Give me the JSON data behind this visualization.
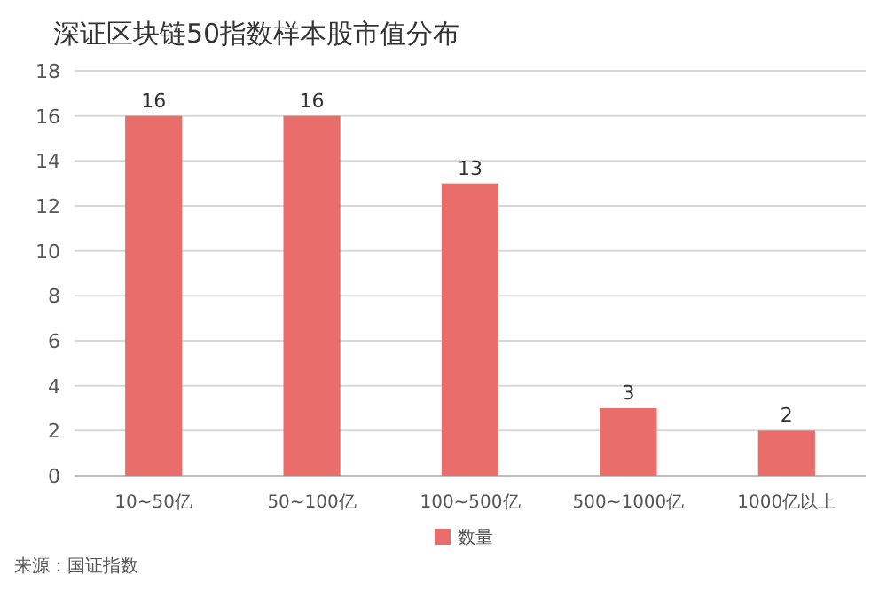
{
  "chart_data": {
    "type": "bar",
    "title": "深证区块链50指数样本股市值分布",
    "categories": [
      "10~50亿",
      "50~100亿",
      "100~500亿",
      "500~1000亿",
      "1000亿以上"
    ],
    "series": [
      {
        "name": "数量",
        "color": "#e96d6b",
        "values": [
          16,
          16,
          13,
          3,
          2
        ]
      }
    ],
    "ylim": [
      0,
      18
    ],
    "yticks": [
      0,
      2,
      4,
      6,
      8,
      10,
      12,
      14,
      16,
      18
    ],
    "grid": "y",
    "legend": "bottom",
    "data_labels": true,
    "annotations": [
      "来源：国证指数"
    ]
  }
}
